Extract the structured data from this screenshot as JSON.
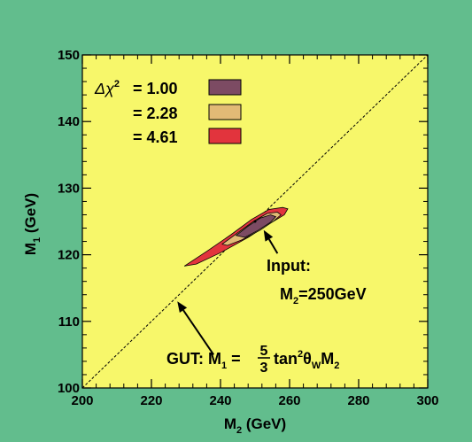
{
  "colors": {
    "background": "#62bd8d",
    "plot_area": "#f7f76a",
    "contour_1sigma": "#7c4b63",
    "contour_2sigma": "#e2ba76",
    "contour_3sigma": "#e2343d"
  },
  "chart_data": {
    "type": "contour",
    "xlabel_main": "M",
    "xlabel_sub": "2",
    "xlabel_unit": " (GeV)",
    "ylabel_main": "M",
    "ylabel_sub": "1",
    "ylabel_unit": " (GeV)",
    "xlim": [
      200,
      300
    ],
    "ylim": [
      100,
      150
    ],
    "x_ticks": [
      "200",
      "220",
      "240",
      "260",
      "280",
      "300"
    ],
    "y_ticks": [
      "100",
      "110",
      "120",
      "130",
      "140",
      "150"
    ],
    "grid": false,
    "legend_placement": "top-left",
    "legend": {
      "prefix": "Δχ",
      "sup": "2",
      "entries": [
        {
          "value": "= 1.00",
          "color": "#7c4b63"
        },
        {
          "value": "= 2.28",
          "color": "#e2ba76"
        },
        {
          "value": "= 4.61",
          "color": "#e2343d"
        }
      ]
    },
    "gut_line": {
      "x": [
        200,
        300
      ],
      "y": [
        100,
        150
      ]
    },
    "contours": [
      {
        "level": "4.61",
        "color": "#e2343d",
        "points": [
          [
            229.5,
            118.3
          ],
          [
            236,
            120.5
          ],
          [
            243,
            123.0
          ],
          [
            249,
            125.3
          ],
          [
            254,
            126.8
          ],
          [
            258,
            127.1
          ],
          [
            259.5,
            126.9
          ],
          [
            258.5,
            126.0
          ],
          [
            254,
            124.6
          ],
          [
            248,
            122.6
          ],
          [
            240,
            120.3
          ],
          [
            233,
            118.6
          ],
          [
            229.5,
            118.3
          ]
        ]
      },
      {
        "level": "2.28",
        "color": "#e2ba76",
        "points": [
          [
            240.5,
            121.6
          ],
          [
            245,
            123.3
          ],
          [
            249.5,
            125.0
          ],
          [
            253.5,
            126.2
          ],
          [
            256.5,
            126.4
          ],
          [
            257.5,
            126.0
          ],
          [
            255.5,
            125.1
          ],
          [
            251.5,
            123.7
          ],
          [
            246,
            122.2
          ],
          [
            242,
            121.4
          ],
          [
            240.5,
            121.6
          ]
        ]
      },
      {
        "level": "1.00",
        "color": "#7c4b63",
        "points": [
          [
            244.5,
            122.9
          ],
          [
            248,
            124.3
          ],
          [
            251.5,
            125.5
          ],
          [
            254.5,
            126.0
          ],
          [
            256,
            125.7
          ],
          [
            254.5,
            124.9
          ],
          [
            251,
            123.7
          ],
          [
            247,
            122.6
          ],
          [
            244.5,
            122.9
          ]
        ]
      }
    ],
    "input_point": {
      "x": 250,
      "y": 125
    },
    "annotations": [
      {
        "lines": [
          [
            {
              "t": "Input:"
            }
          ],
          [
            {
              "t": "M"
            },
            {
              "t": "2",
              "sub": true
            },
            {
              "t": "=250GeV"
            }
          ]
        ],
        "arrow_from": [
          256.5,
          120.2
        ],
        "arrow_to": [
          252.5,
          123.7
        ]
      },
      {
        "lines": [
          [
            {
              "t": "GUT: M"
            },
            {
              "t": "1",
              "sub": true
            },
            {
              "t": " = "
            },
            {
              "frac": [
                "5",
                "3"
              ]
            },
            {
              "t": "tan"
            },
            {
              "t": "2",
              "sup": true
            },
            {
              "t": "θ"
            },
            {
              "t": "W",
              "sub": true
            },
            {
              "t": "M"
            },
            {
              "t": "2",
              "sub": true
            }
          ]
        ],
        "arrow_from": [
          238.0,
          105.0
        ],
        "arrow_to": [
          227.5,
          113.0
        ]
      }
    ]
  }
}
